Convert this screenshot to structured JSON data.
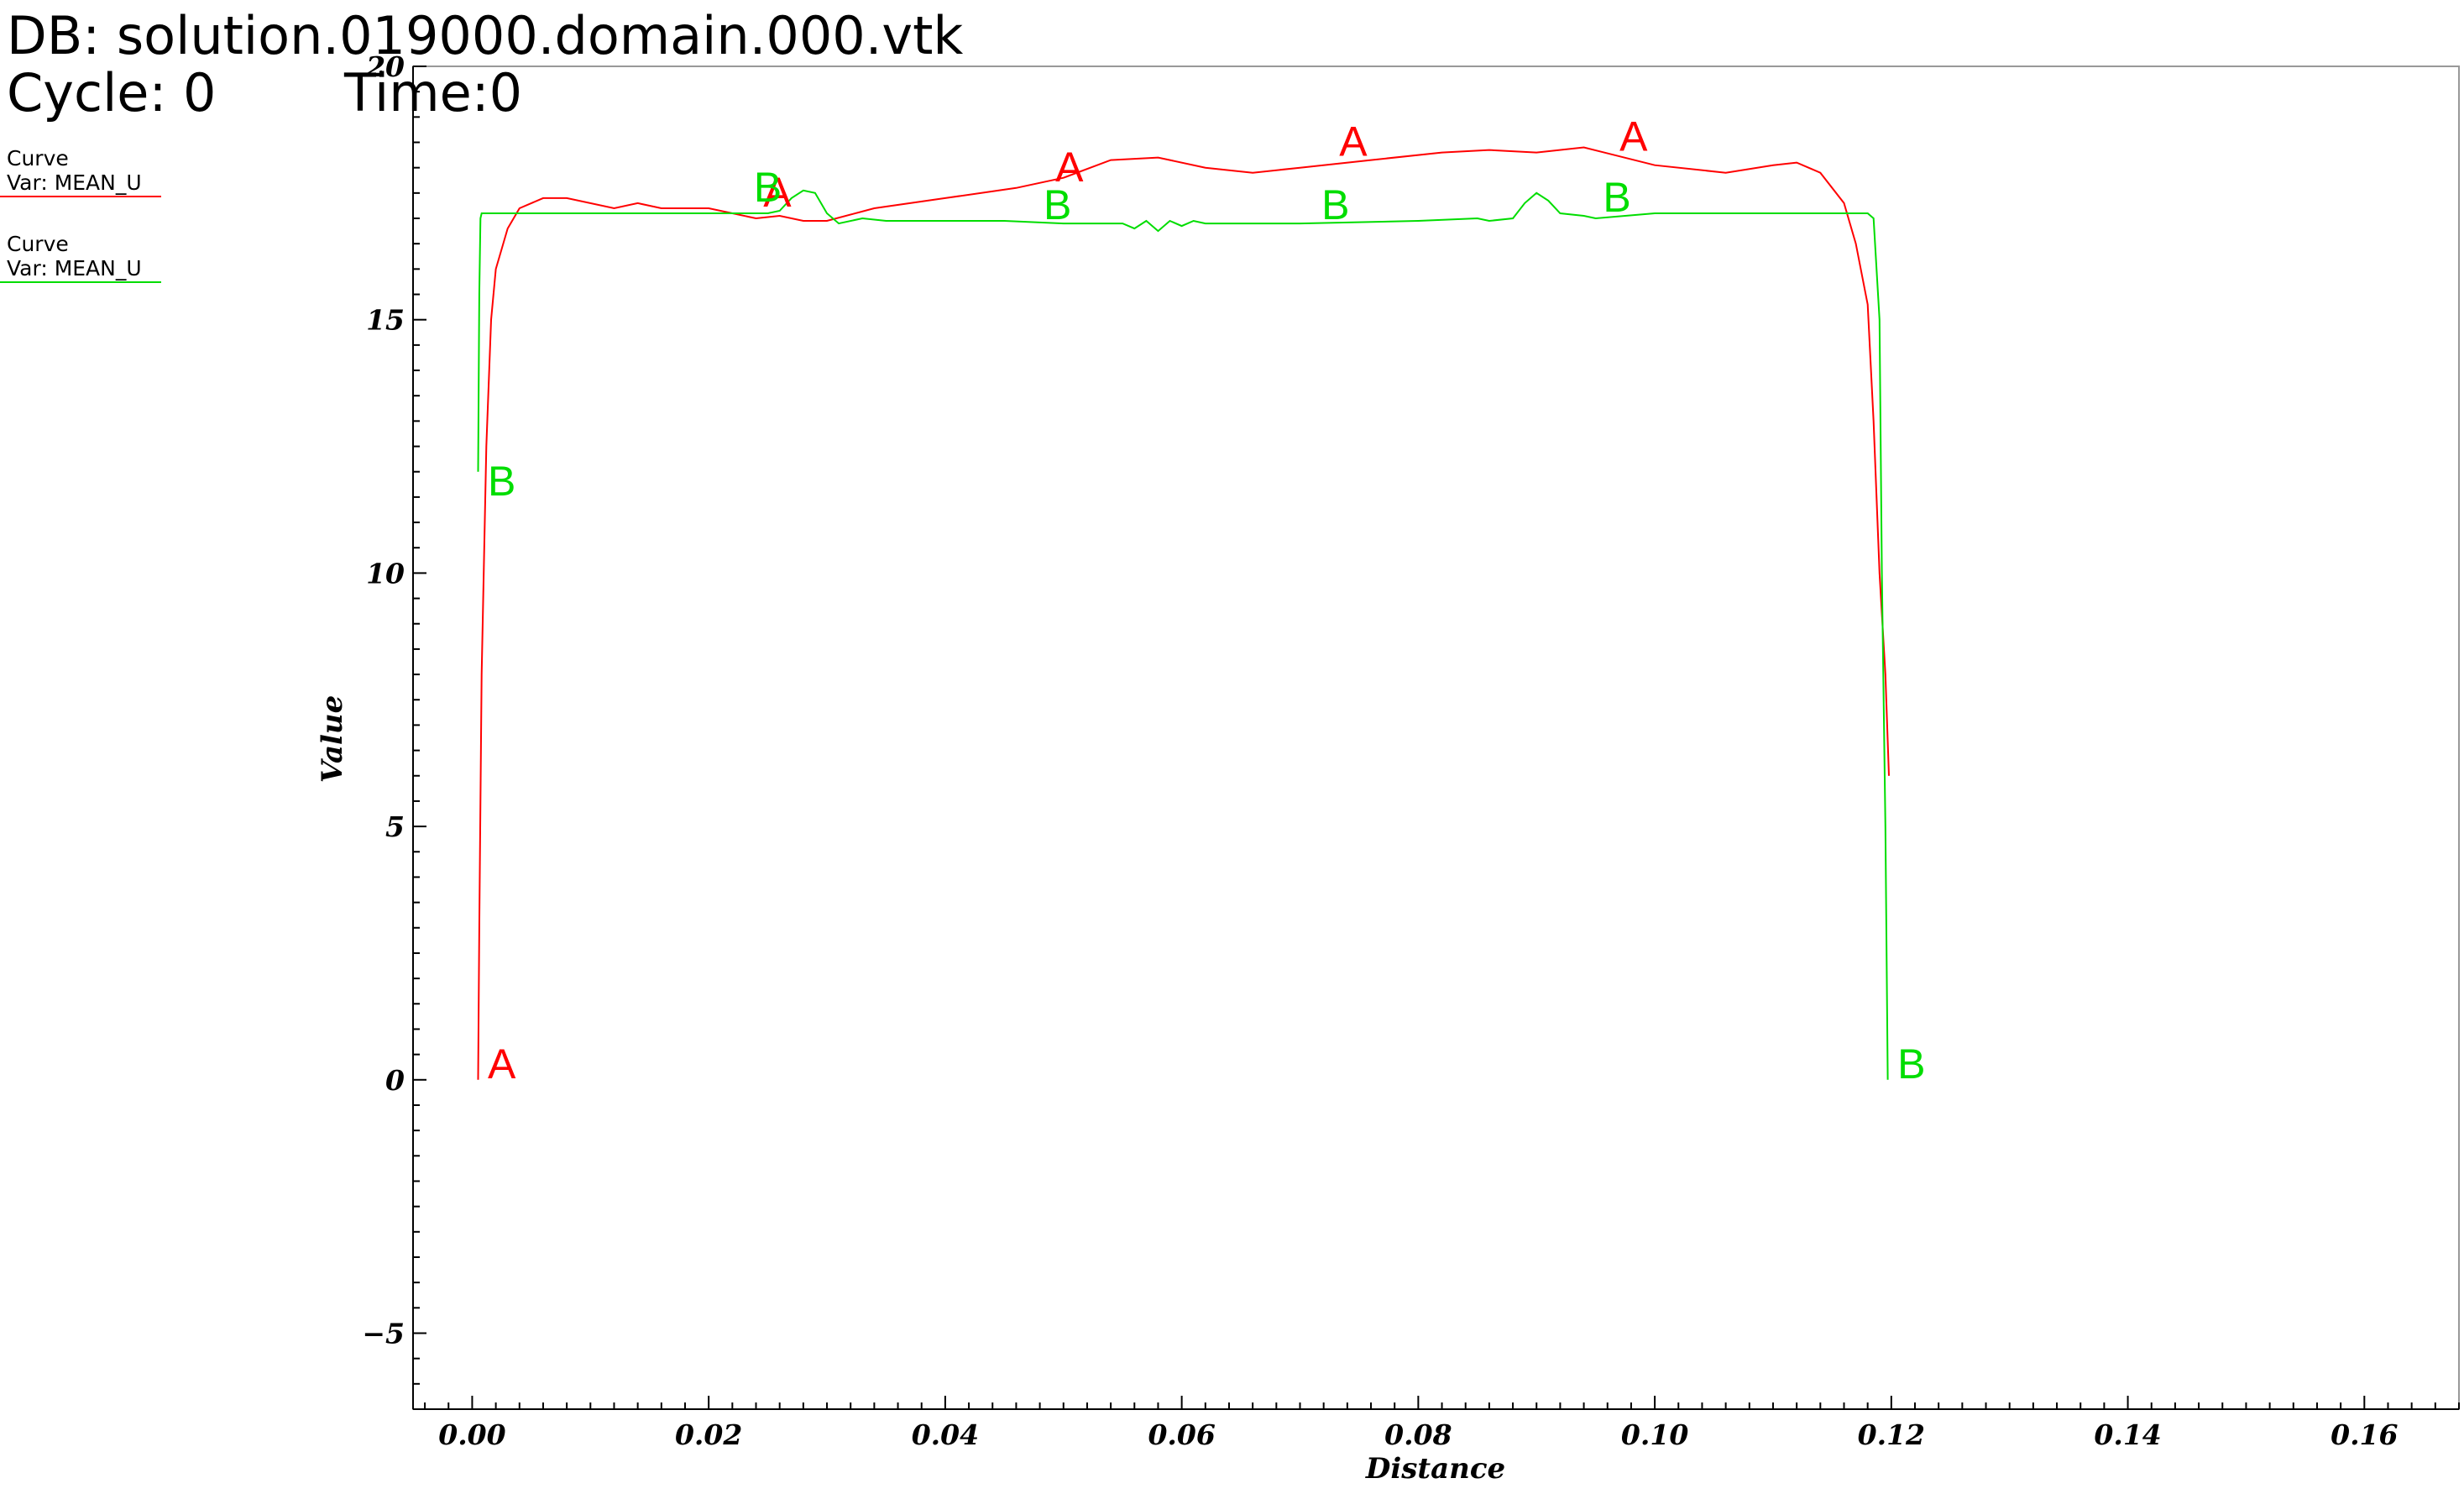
{
  "header": {
    "db": "DB: solution.019000.domain.000.vtk",
    "cycle": "Cycle: 0",
    "time": "Time:0"
  },
  "legend": [
    {
      "title": "Curve",
      "var": "Var: MEAN_U",
      "color": "#ff0000"
    },
    {
      "title": "Curve",
      "var": "Var: MEAN_U",
      "color": "#00dd00"
    }
  ],
  "chart_data": {
    "type": "line",
    "title": "",
    "xlabel": "Distance",
    "ylabel": "Value",
    "xlim": [
      -0.005,
      0.168
    ],
    "ylim": [
      -6.5,
      20
    ],
    "xticks": [
      0.0,
      0.02,
      0.04,
      0.06,
      0.08,
      0.1,
      0.12,
      0.14,
      0.16
    ],
    "xtick_labels": [
      "0.00",
      "0.02",
      "0.04",
      "0.06",
      "0.08",
      "0.10",
      "0.12",
      "0.14",
      "0.16"
    ],
    "yticks": [
      -5,
      0,
      5,
      10,
      15,
      20
    ],
    "ytick_labels": [
      "−5",
      "0",
      "5",
      "10",
      "15",
      "20"
    ],
    "grid": false,
    "series": [
      {
        "name": "A",
        "color": "#ff0000",
        "x": [
          0.0005,
          0.0006,
          0.0008,
          0.0012,
          0.0016,
          0.002,
          0.003,
          0.004,
          0.006,
          0.008,
          0.012,
          0.014,
          0.016,
          0.02,
          0.024,
          0.026,
          0.028,
          0.03,
          0.034,
          0.04,
          0.046,
          0.05,
          0.054,
          0.058,
          0.062,
          0.066,
          0.07,
          0.076,
          0.082,
          0.086,
          0.09,
          0.094,
          0.1,
          0.106,
          0.11,
          0.112,
          0.114,
          0.116,
          0.117,
          0.118,
          0.1185,
          0.119,
          0.1195,
          0.1198
        ],
        "y": [
          0,
          3,
          8,
          12.5,
          15,
          16,
          16.8,
          17.2,
          17.4,
          17.4,
          17.2,
          17.3,
          17.2,
          17.2,
          17.0,
          17.05,
          16.95,
          16.95,
          17.2,
          17.4,
          17.6,
          17.8,
          18.15,
          18.2,
          18.0,
          17.9,
          18.0,
          18.15,
          18.3,
          18.35,
          18.3,
          18.4,
          18.05,
          17.9,
          18.05,
          18.1,
          17.9,
          17.3,
          16.5,
          15.3,
          13.0,
          10.0,
          8.0,
          6.0
        ]
      },
      {
        "name": "B",
        "color": "#00dd00",
        "x": [
          0.0005,
          0.0006,
          0.0007,
          0.0008,
          0.0009,
          0.001,
          0.005,
          0.01,
          0.015,
          0.02,
          0.025,
          0.026,
          0.027,
          0.028,
          0.029,
          0.03,
          0.031,
          0.033,
          0.035,
          0.04,
          0.045,
          0.05,
          0.055,
          0.056,
          0.057,
          0.058,
          0.059,
          0.06,
          0.061,
          0.062,
          0.065,
          0.07,
          0.08,
          0.085,
          0.086,
          0.088,
          0.089,
          0.09,
          0.091,
          0.092,
          0.094,
          0.095,
          0.1,
          0.11,
          0.118,
          0.1185,
          0.119,
          0.1192,
          0.1195,
          0.1197
        ],
        "y": [
          12,
          15.5,
          17.0,
          17.1,
          17.1,
          17.1,
          17.1,
          17.1,
          17.1,
          17.1,
          17.1,
          17.15,
          17.4,
          17.55,
          17.5,
          17.1,
          16.9,
          17.0,
          16.95,
          16.95,
          16.95,
          16.9,
          16.9,
          16.8,
          16.95,
          16.75,
          16.95,
          16.85,
          16.95,
          16.9,
          16.9,
          16.9,
          16.95,
          17.0,
          16.95,
          17.0,
          17.3,
          17.5,
          17.35,
          17.1,
          17.05,
          17.0,
          17.1,
          17.1,
          17.1,
          17.0,
          15.0,
          10.0,
          5.0,
          0
        ]
      }
    ],
    "annotations": [
      {
        "text": "A",
        "x": 0.0025,
        "y": 0,
        "color": "#ff0000"
      },
      {
        "text": "A",
        "x": 0.0258,
        "y": 17.2,
        "color": "#ff0000"
      },
      {
        "text": "A",
        "x": 0.0505,
        "y": 17.7,
        "color": "#ff0000"
      },
      {
        "text": "A",
        "x": 0.0745,
        "y": 18.2,
        "color": "#ff0000"
      },
      {
        "text": "A",
        "x": 0.0982,
        "y": 18.3,
        "color": "#ff0000"
      },
      {
        "text": "B",
        "x": 0.0025,
        "y": 11.5,
        "color": "#00dd00"
      },
      {
        "text": "B",
        "x": 0.025,
        "y": 17.3,
        "color": "#00dd00"
      },
      {
        "text": "B",
        "x": 0.0495,
        "y": 16.95,
        "color": "#00dd00"
      },
      {
        "text": "B",
        "x": 0.073,
        "y": 16.95,
        "color": "#00dd00"
      },
      {
        "text": "B",
        "x": 0.0968,
        "y": 17.1,
        "color": "#00dd00"
      },
      {
        "text": "B",
        "x": 0.1217,
        "y": 0,
        "color": "#00dd00"
      }
    ]
  }
}
